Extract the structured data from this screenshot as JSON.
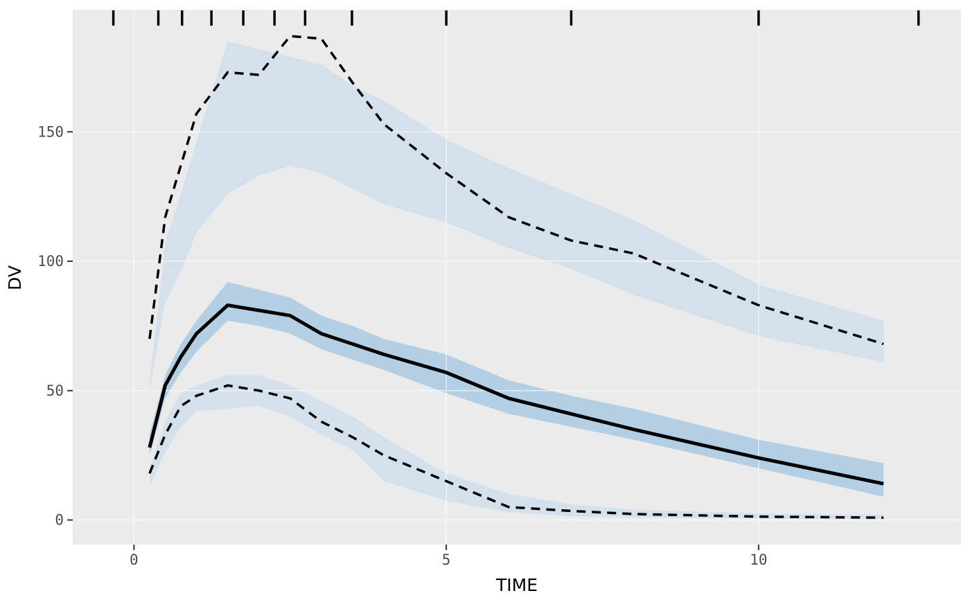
{
  "chart_data": {
    "type": "line",
    "subtype": "visual-predictive-check",
    "title": "",
    "xlabel": "TIME",
    "ylabel": "DV",
    "x_ticks": [
      {
        "value": 0,
        "label": "0"
      },
      {
        "value": 5,
        "label": "5"
      },
      {
        "value": 10,
        "label": "10"
      }
    ],
    "y_ticks": [
      {
        "value": 0,
        "label": "0"
      },
      {
        "value": 50,
        "label": "50"
      },
      {
        "value": 100,
        "label": "100"
      },
      {
        "value": 150,
        "label": "150"
      }
    ],
    "xlim": [
      -0.98,
      13.24
    ],
    "ylim": [
      -9.5,
      197.2
    ],
    "grid": "major-only",
    "legend": "none",
    "x": [
      0.25,
      0.5,
      0.75,
      1,
      1.5,
      2,
      2.5,
      3,
      3.5,
      4,
      5,
      6,
      7,
      8,
      10,
      12
    ],
    "ribbons": [
      {
        "name": "ci-95th-percentile",
        "lo": [
          50,
          84,
          96,
          111,
          126,
          133,
          137,
          134,
          128,
          122,
          115,
          105,
          97,
          87,
          71,
          61
        ],
        "hi": [
          53,
          107,
          126,
          146,
          185,
          182,
          179,
          176,
          168,
          162,
          147,
          136,
          126,
          116,
          91,
          77
        ],
        "color": "#d4e1ec"
      },
      {
        "name": "ci-5th-percentile",
        "lo": [
          13,
          26,
          36,
          42,
          43,
          44,
          40,
          33,
          27,
          15,
          7.4,
          3,
          1.5,
          1,
          0.5,
          0.3
        ],
        "hi": [
          20,
          38,
          49,
          52,
          56,
          56,
          52,
          46,
          40,
          32,
          18,
          10,
          6,
          4,
          2.5,
          2
        ],
        "color": "#d4e1ec"
      },
      {
        "name": "ci-median",
        "lo": [
          25,
          47,
          57,
          65,
          77,
          75,
          72,
          66,
          62,
          58,
          49,
          41,
          36,
          31,
          20,
          9
        ],
        "hi": [
          33,
          56,
          68,
          77,
          92,
          89,
          86,
          79,
          75,
          70,
          64,
          54,
          48,
          43,
          31,
          22
        ],
        "color": "#b4cfe4"
      }
    ],
    "lines": [
      {
        "name": "observed-95th-percentile",
        "style": "dashed",
        "width": 3.5,
        "values": [
          70,
          117,
          137,
          157,
          173,
          172,
          187,
          186,
          169,
          153,
          134,
          117,
          108,
          103,
          83,
          68
        ]
      },
      {
        "name": "observed-5th-percentile",
        "style": "dashed",
        "width": 3.5,
        "values": [
          18,
          33,
          44,
          48,
          52,
          50,
          47,
          38,
          32,
          25,
          15,
          5,
          3.5,
          2.3,
          1.3,
          0.9
        ]
      },
      {
        "name": "observed-median",
        "style": "solid",
        "width": 5,
        "values": [
          28,
          52,
          63,
          72,
          83,
          81,
          79,
          72,
          68,
          64,
          57,
          47,
          41,
          35,
          24,
          14
        ]
      }
    ],
    "rug_bin_boundaries": [
      -0.33,
      0.39,
      0.77,
      1.24,
      1.75,
      2.25,
      2.74,
      3.49,
      5.0,
      7.0,
      10.0,
      12.56
    ],
    "colors": {
      "panel_background": "#ebebeb",
      "gridline": "rgba(255,255,255,0.55)",
      "line": "#000000",
      "tick_mark": "#333333",
      "tick_label": "#4d4d4d",
      "axis_title": "#000000",
      "ribbon_light": "#d4e1ec",
      "ribbon_dark": "#b4cfe4"
    }
  }
}
